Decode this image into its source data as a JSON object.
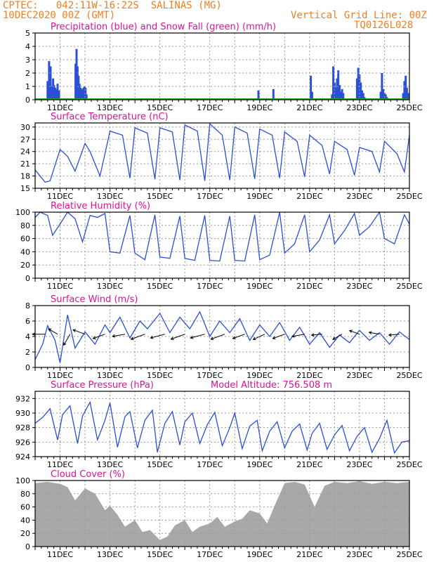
{
  "header": {
    "line1_left": "CPTEC:   042:11W-16:22S  SALINAS (MG)",
    "line2_left": "10DEC2020 00Z (GMT)",
    "line2_right": "Vertical Grid Line: 00Z",
    "line3_right": "TQ0126L028"
  },
  "colors": {
    "header": "#ee7f22",
    "title": "#e0109a",
    "series": "#2b4fd6",
    "snow": "#22a022",
    "cloud": "#a8a8a8",
    "grid": "#999999"
  },
  "x_axis": {
    "labels": [
      "11DEC",
      "13DEC",
      "15DEC",
      "17DEC",
      "19DEC",
      "21DEC",
      "23DEC",
      "25DEC"
    ],
    "label_days": [
      1,
      3,
      5,
      7,
      9,
      11,
      13,
      15
    ],
    "range_days": [
      0,
      15
    ]
  },
  "chart_data": [
    {
      "id": "precip",
      "type": "bar",
      "title": "Precipitation (blue) and Snow Fall (green) (mm/h)",
      "ylim": [
        0,
        5
      ],
      "yticks": [
        0,
        1,
        2,
        3,
        4,
        5
      ],
      "series": [
        {
          "name": "Precipitation",
          "color": "#2b4fd6",
          "x": [
            0.5,
            0.56,
            0.62,
            0.68,
            0.72,
            0.76,
            0.8,
            0.85,
            0.9,
            0.96,
            1.62,
            1.66,
            1.7,
            1.74,
            1.78,
            1.82,
            1.86,
            1.9,
            1.94,
            1.98,
            2.02,
            2.06,
            8.95,
            9.55,
            11.05,
            11.1,
            11.9,
            11.95,
            12.0,
            12.05,
            12.1,
            12.15,
            12.2,
            12.25,
            12.3,
            12.35,
            12.9,
            12.95,
            13.0,
            13.05,
            13.1,
            13.15,
            13.2,
            13.85,
            13.9,
            13.95,
            14.0,
            14.05,
            14.1,
            14.75,
            14.8,
            14.85,
            14.9,
            14.95
          ],
          "values": [
            1.4,
            2.9,
            2.5,
            1.0,
            1.6,
            1.1,
            0.9,
            0.8,
            1.2,
            0.7,
            2.7,
            3.8,
            2.5,
            1.8,
            1.2,
            0.9,
            0.8,
            0.7,
            0.9,
            1.0,
            0.9,
            0.4,
            0.7,
            0.8,
            1.8,
            0.6,
            0.4,
            2.5,
            1.3,
            0.9,
            1.6,
            2.2,
            1.1,
            0.6,
            0.8,
            0.5,
            1.6,
            2.4,
            1.9,
            1.3,
            0.7,
            0.5,
            0.2,
            0.6,
            2.0,
            0.8,
            0.5,
            0.4,
            0.2,
            0.5,
            1.4,
            1.8,
            0.9,
            0.5
          ]
        },
        {
          "name": "Snow Fall",
          "color": "#22a022",
          "x": [
            0,
            15
          ],
          "values": [
            0,
            0
          ]
        }
      ]
    },
    {
      "id": "temp",
      "type": "line",
      "title": "Surface Temperature (nC)",
      "ylim": [
        15,
        31
      ],
      "yticks": [
        15,
        18,
        21,
        24,
        27,
        30
      ],
      "x": [
        0,
        0.4,
        0.6,
        1.0,
        1.3,
        1.6,
        2.0,
        2.2,
        2.6,
        3.0,
        3.5,
        3.8,
        4.0,
        4.5,
        4.8,
        5.0,
        5.5,
        5.8,
        6.0,
        6.5,
        6.8,
        7.0,
        7.5,
        7.8,
        8.0,
        8.5,
        8.8,
        9.0,
        9.5,
        9.8,
        10.0,
        10.5,
        10.8,
        11.0,
        11.5,
        11.8,
        12.0,
        12.5,
        12.8,
        13.0,
        13.5,
        13.8,
        14.0,
        14.5,
        14.8,
        15.0
      ],
      "values": [
        19.5,
        16.5,
        16.8,
        24.5,
        22.8,
        19.2,
        26.0,
        24.0,
        18.0,
        29.0,
        28.0,
        17.5,
        29.8,
        28.5,
        17.2,
        29.8,
        28.8,
        17.0,
        30.5,
        29.0,
        16.8,
        30.8,
        28.0,
        17.0,
        30.0,
        28.5,
        17.3,
        29.5,
        28.0,
        17.5,
        28.8,
        26.5,
        17.8,
        28.0,
        25.5,
        18.5,
        26.5,
        24.5,
        18.2,
        25.0,
        24.0,
        19.0,
        26.5,
        23.5,
        19.0,
        28.0
      ]
    },
    {
      "id": "rh",
      "type": "line",
      "title": "Relative Humidity (%)",
      "ylim": [
        0,
        100
      ],
      "yticks": [
        0,
        20,
        40,
        60,
        80,
        100
      ],
      "x": [
        0,
        0.2,
        0.5,
        0.7,
        1.0,
        1.3,
        1.6,
        1.9,
        2.2,
        2.5,
        2.8,
        3.0,
        3.4,
        3.8,
        4.0,
        4.4,
        4.8,
        5.0,
        5.4,
        5.8,
        6.0,
        6.4,
        6.8,
        7.0,
        7.4,
        7.8,
        8.0,
        8.4,
        8.8,
        9.0,
        9.4,
        9.8,
        10.0,
        10.4,
        10.8,
        11.0,
        11.4,
        11.8,
        12.0,
        12.4,
        12.8,
        13.0,
        13.4,
        13.8,
        14.0,
        14.4,
        14.8,
        15.0
      ],
      "values": [
        92,
        100,
        95,
        65,
        82,
        100,
        90,
        55,
        95,
        92,
        98,
        40,
        38,
        95,
        38,
        28,
        96,
        32,
        30,
        94,
        30,
        27,
        95,
        27,
        26,
        94,
        27,
        26,
        96,
        28,
        35,
        100,
        38,
        52,
        96,
        40,
        58,
        96,
        52,
        72,
        98,
        65,
        78,
        100,
        60,
        52,
        96,
        82
      ]
    },
    {
      "id": "wind",
      "type": "line",
      "title": "Surface Wind (m/s)",
      "ylim": [
        0,
        8
      ],
      "yticks": [
        0,
        2,
        4,
        6,
        8
      ],
      "x": [
        0,
        0.3,
        0.5,
        0.8,
        1.0,
        1.3,
        1.6,
        2.0,
        2.4,
        2.8,
        3.0,
        3.4,
        3.8,
        4.2,
        4.5,
        5.0,
        5.4,
        5.8,
        6.2,
        6.6,
        7.0,
        7.4,
        7.8,
        8.2,
        8.6,
        9.0,
        9.4,
        9.8,
        10.2,
        10.6,
        11.0,
        11.4,
        11.8,
        12.2,
        12.6,
        13.0,
        13.4,
        13.8,
        14.2,
        14.6,
        15.0
      ],
      "values": [
        1.0,
        3.0,
        5.4,
        3.5,
        0.6,
        6.8,
        2.5,
        4.6,
        3.0,
        5.5,
        4.5,
        6.5,
        3.8,
        6.0,
        5.0,
        7.0,
        4.5,
        6.5,
        5.0,
        7.2,
        4.0,
        6.0,
        4.5,
        6.3,
        3.5,
        5.5,
        4.0,
        5.8,
        3.5,
        5.2,
        3.0,
        4.5,
        2.6,
        4.2,
        3.2,
        4.8,
        3.5,
        4.5,
        3.0,
        4.6,
        3.6
      ],
      "arrows": [
        {
          "x": 0.4,
          "dir": 180,
          "speed": 4
        },
        {
          "x": 0.9,
          "dir": 210,
          "speed": 3
        },
        {
          "x": 1.4,
          "dir": 120,
          "speed": 4
        },
        {
          "x": 2.0,
          "dir": 200,
          "speed": 4
        },
        {
          "x": 2.8,
          "dir": 160,
          "speed": 4
        },
        {
          "x": 3.6,
          "dir": 170,
          "speed": 4
        },
        {
          "x": 4.4,
          "dir": 160,
          "speed": 5
        },
        {
          "x": 5.2,
          "dir": 165,
          "speed": 5
        },
        {
          "x": 6.0,
          "dir": 160,
          "speed": 5
        },
        {
          "x": 6.8,
          "dir": 165,
          "speed": 5
        },
        {
          "x": 7.6,
          "dir": 160,
          "speed": 5
        },
        {
          "x": 8.4,
          "dir": 160,
          "speed": 4
        },
        {
          "x": 9.2,
          "dir": 155,
          "speed": 4
        },
        {
          "x": 10.0,
          "dir": 160,
          "speed": 4
        },
        {
          "x": 10.8,
          "dir": 170,
          "speed": 4
        },
        {
          "x": 11.5,
          "dir": 175,
          "speed": 3
        },
        {
          "x": 12.3,
          "dir": 150,
          "speed": 3
        },
        {
          "x": 13.0,
          "dir": 200,
          "speed": 3
        },
        {
          "x": 13.8,
          "dir": 190,
          "speed": 3
        },
        {
          "x": 14.6,
          "dir": 175,
          "speed": 3
        }
      ]
    },
    {
      "id": "pressure",
      "type": "line",
      "title": "Surface Pressure (hPa)",
      "subtitle": "Model Altitude: 756.508 m",
      "ylim": [
        924,
        933
      ],
      "yticks": [
        924,
        926,
        928,
        930,
        932
      ],
      "x": [
        0,
        0.3,
        0.6,
        0.9,
        1.1,
        1.4,
        1.7,
        1.9,
        2.2,
        2.5,
        2.8,
        3.0,
        3.3,
        3.6,
        3.8,
        4.1,
        4.4,
        4.7,
        4.9,
        5.2,
        5.5,
        5.8,
        6.0,
        6.3,
        6.6,
        6.9,
        7.2,
        7.5,
        7.8,
        8.0,
        8.3,
        8.6,
        8.9,
        9.1,
        9.4,
        9.7,
        10.0,
        10.3,
        10.6,
        10.9,
        11.1,
        11.4,
        11.7,
        12.0,
        12.3,
        12.6,
        12.9,
        13.2,
        13.5,
        13.8,
        14.1,
        14.4,
        14.7,
        15.0
      ],
      "values": [
        928.6,
        929.4,
        930.6,
        926.3,
        929.8,
        931.0,
        925.8,
        929.6,
        931.5,
        926.3,
        929.0,
        931.4,
        925.3,
        929.5,
        930.2,
        925.2,
        929.0,
        930.4,
        924.6,
        928.6,
        930.2,
        925.6,
        928.8,
        930.0,
        925.8,
        928.4,
        930.1,
        925.5,
        928.0,
        930.0,
        925.1,
        928.2,
        929.0,
        924.8,
        927.5,
        928.8,
        925.2,
        927.5,
        928.5,
        924.9,
        927.2,
        928.6,
        925.0,
        927.0,
        928.3,
        924.8,
        926.8,
        928.0,
        924.6,
        926.5,
        929.0,
        924.5,
        926.0,
        926.2
      ]
    },
    {
      "id": "cloud",
      "type": "area",
      "title": "Cloud Cover (%)",
      "ylim": [
        0,
        100
      ],
      "yticks": [
        0,
        20,
        40,
        60,
        80,
        100
      ],
      "x": [
        0,
        0.5,
        1.0,
        1.3,
        1.6,
        2.0,
        2.4,
        2.8,
        3.0,
        3.3,
        3.6,
        4.0,
        4.3,
        4.6,
        5.0,
        5.3,
        5.6,
        6.0,
        6.3,
        6.6,
        7.0,
        7.3,
        7.6,
        8.0,
        8.3,
        8.6,
        9.0,
        9.3,
        9.6,
        10.0,
        10.4,
        10.8,
        11.2,
        11.6,
        12.0,
        12.5,
        13.0,
        13.5,
        14.0,
        14.5,
        15.0
      ],
      "values": [
        96,
        98,
        95,
        90,
        70,
        88,
        80,
        55,
        62,
        48,
        30,
        40,
        22,
        25,
        10,
        15,
        32,
        40,
        22,
        30,
        35,
        45,
        30,
        38,
        42,
        55,
        50,
        35,
        62,
        96,
        98,
        94,
        60,
        92,
        98,
        96,
        99,
        95,
        98,
        96,
        98
      ]
    }
  ]
}
